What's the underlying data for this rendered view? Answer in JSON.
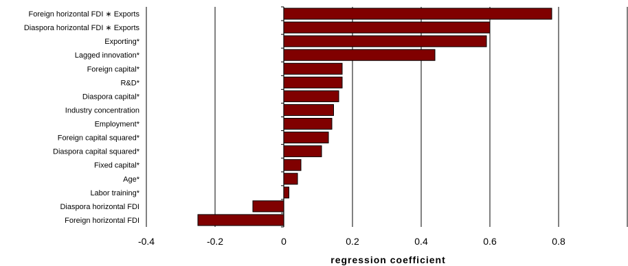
{
  "chart_data": {
    "type": "bar",
    "orientation": "horizontal",
    "title": "",
    "xlabel": "regression coefficient",
    "ylabel": "",
    "xlim": [
      -0.4,
      1.0
    ],
    "xticks": [
      -0.4,
      -0.2,
      0,
      0.2,
      0.4,
      0.6,
      0.8
    ],
    "tick_labels": [
      "-0.4",
      "-0.2",
      "0",
      "0.2",
      "0.4",
      "0.6",
      "0.8"
    ],
    "grid": "vertical",
    "bar_color": "#800000",
    "categories": [
      "Foreign horizontal FDI ∗ Exports",
      "Diaspora horizontal FDI ∗ Exports",
      "Exporting*",
      "Lagged innovation*",
      "Foreign capital*",
      "R&D*",
      "Diaspora capital*",
      "Industry concentration",
      "Employment*",
      "Foreign capital squared*",
      "Diaspora capital squared*",
      "Fixed capital*",
      "Age*",
      "Labor training*",
      "Diaspora horizontal FDI",
      "Foreign horizontal FDI"
    ],
    "values": [
      0.78,
      0.6,
      0.59,
      0.44,
      0.17,
      0.17,
      0.16,
      0.145,
      0.14,
      0.13,
      0.11,
      0.05,
      0.04,
      0.015,
      -0.09,
      -0.25
    ]
  }
}
